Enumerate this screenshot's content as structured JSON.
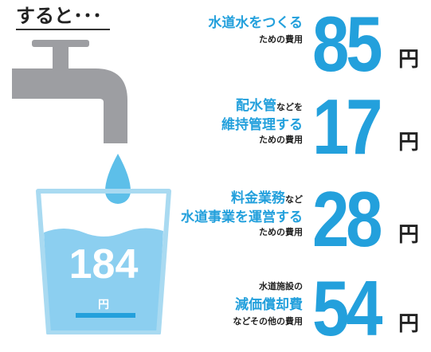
{
  "header": {
    "title": "すると･･･"
  },
  "cup": {
    "amount": "184",
    "unit": "円"
  },
  "items": [
    {
      "lines": [
        [
          {
            "text": "水道水をつくる",
            "accent": true
          }
        ],
        [
          {
            "text": "ための費用",
            "accent": false
          }
        ]
      ],
      "amount": "85",
      "unit": "円"
    },
    {
      "lines": [
        [
          {
            "text": "配水管",
            "accent": true
          },
          {
            "text": "などを",
            "accent": false
          }
        ],
        [
          {
            "text": "維持管理する",
            "accent": true
          }
        ],
        [
          {
            "text": "ための費用",
            "accent": false
          }
        ]
      ],
      "amount": "17",
      "unit": "円"
    },
    {
      "lines": [
        [
          {
            "text": "料金業務",
            "accent": true
          },
          {
            "text": "など",
            "accent": false
          }
        ],
        [
          {
            "text": "水道事業を運営する",
            "accent": true
          }
        ],
        [
          {
            "text": "ための費用",
            "accent": false
          }
        ]
      ],
      "amount": "28",
      "unit": "円"
    },
    {
      "lines": [
        [
          {
            "text": "水道施設の",
            "accent": false
          }
        ],
        [
          {
            "text": "減価償却費",
            "accent": true
          }
        ],
        [
          {
            "text": "などその他の費用",
            "accent": false
          }
        ]
      ],
      "amount": "54",
      "unit": "円"
    }
  ]
}
